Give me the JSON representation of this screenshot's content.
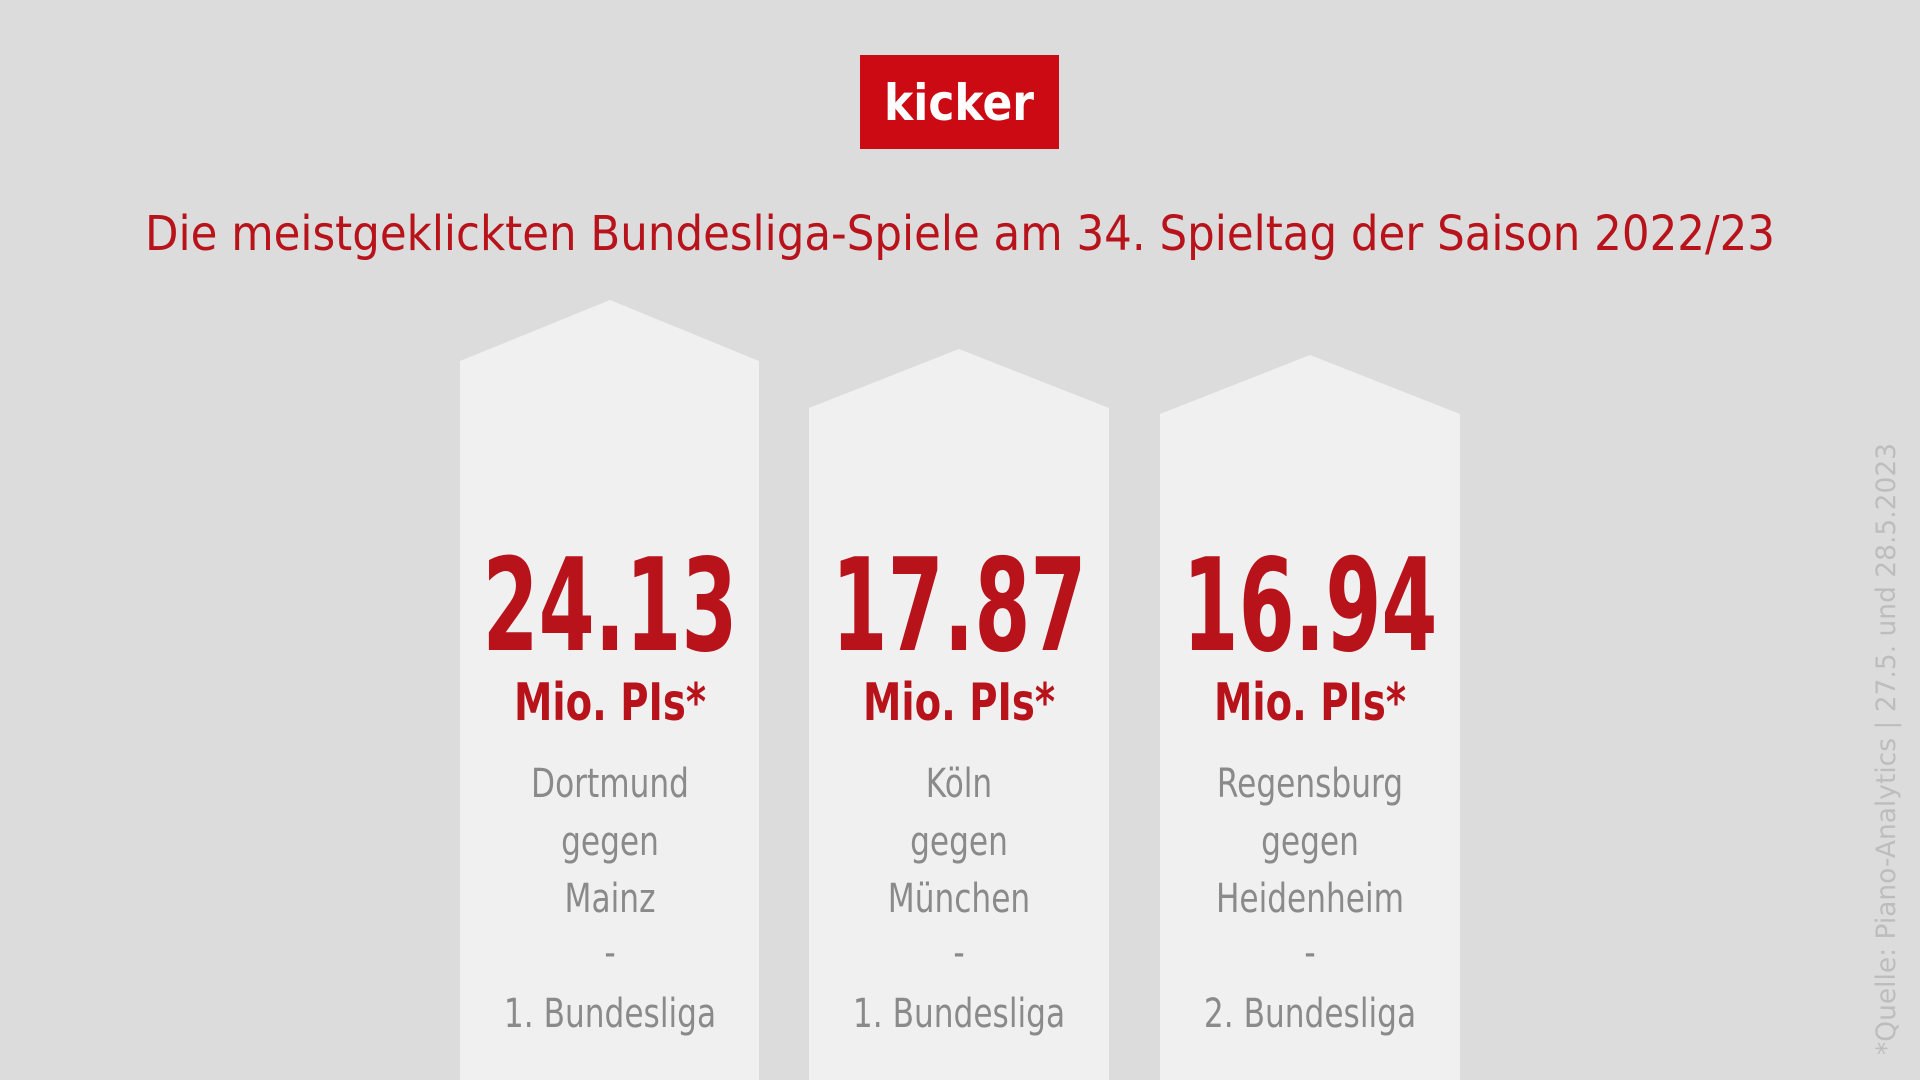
{
  "logo": "kicker",
  "title": "Die meistgeklickten Bundesliga-Spiele am 34. Spieltag der Saison 2022/23",
  "cards": [
    {
      "value": 24.13,
      "unit": "Mio. PIs*",
      "home": "Dortmund",
      "connector": "gegen",
      "away": "Mainz",
      "separator": "-",
      "league": "1. Bundesliga"
    },
    {
      "value": 17.87,
      "unit": "Mio. PIs*",
      "home": "Köln",
      "connector": "gegen",
      "away": "München",
      "separator": "-",
      "league": "1. Bundesliga"
    },
    {
      "value": 16.94,
      "unit": "Mio. PIs*",
      "home": "Regensburg",
      "connector": "gegen",
      "away": "Heidenheim",
      "separator": "-",
      "league": "2. Bundesliga"
    }
  ],
  "source": "*Quelle: Piano-Analytics | 27.5. und 28.5.2023"
}
